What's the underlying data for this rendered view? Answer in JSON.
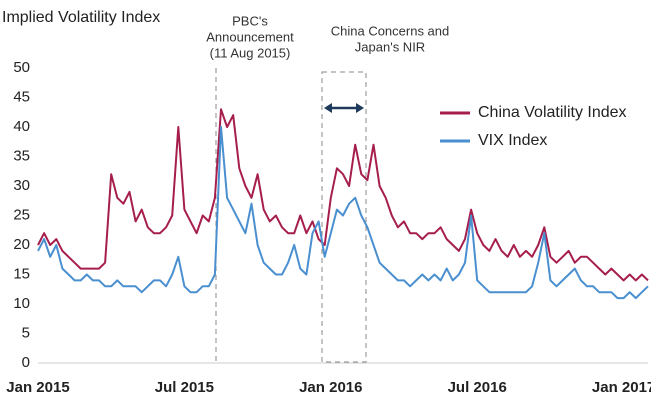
{
  "chart_data": {
    "type": "line",
    "title": "Implied Volatility Index",
    "annotations": [
      [
        "PBC's",
        "Announcement",
        "(11 Aug 2015)"
      ],
      [
        "China Concerns and",
        "Japan's NIR"
      ]
    ],
    "categories": [
      "Jan 2015",
      null,
      null,
      null,
      null,
      null,
      null,
      null,
      null,
      null,
      null,
      null,
      null,
      null,
      null,
      null,
      null,
      null,
      null,
      null,
      null,
      null,
      null,
      null,
      "Jul 2015",
      null,
      null,
      null,
      null,
      null,
      null,
      null,
      null,
      null,
      null,
      null,
      null,
      null,
      null,
      null,
      null,
      null,
      null,
      null,
      null,
      null,
      null,
      null,
      "Jan 2016",
      null,
      null,
      null,
      null,
      null,
      null,
      null,
      null,
      null,
      null,
      null,
      null,
      null,
      null,
      null,
      null,
      null,
      null,
      null,
      null,
      null,
      null,
      null,
      "Jul 2016",
      null,
      null,
      null,
      null,
      null,
      null,
      null,
      null,
      null,
      null,
      null,
      null,
      null,
      null,
      null,
      null,
      null,
      null,
      null,
      null,
      null,
      null,
      null,
      "Jan 2017",
      null,
      null,
      null,
      null
    ],
    "series": [
      {
        "name": "China Volatility Index",
        "color": "#a61e4d",
        "values": [
          20,
          22,
          20,
          21,
          19,
          18,
          17,
          16,
          16,
          16,
          16,
          17,
          32,
          28,
          27,
          29,
          24,
          26,
          23,
          22,
          22,
          23,
          25,
          40,
          26,
          24,
          22,
          25,
          24,
          28,
          43,
          40,
          42,
          33,
          30,
          28,
          32,
          26,
          24,
          25,
          23,
          22,
          22,
          25,
          22,
          24,
          21,
          20,
          28,
          33,
          32,
          30,
          37,
          32,
          31,
          37,
          30,
          28,
          25,
          23,
          24,
          22,
          22,
          21,
          22,
          22,
          23,
          21,
          20,
          19,
          21,
          26,
          22,
          20,
          19,
          21,
          19,
          18,
          20,
          18,
          19,
          18,
          20,
          23,
          18,
          17,
          18,
          19,
          17,
          18,
          18,
          17,
          16,
          15,
          16,
          15,
          14,
          15,
          14,
          15,
          14
        ]
      },
      {
        "name": "VIX Index",
        "color": "#4a8fd0",
        "values": [
          19,
          21,
          18,
          20,
          16,
          15,
          14,
          14,
          15,
          14,
          14,
          13,
          13,
          14,
          13,
          13,
          13,
          12,
          13,
          14,
          14,
          13,
          15,
          18,
          13,
          12,
          12,
          13,
          13,
          15,
          40,
          28,
          26,
          24,
          22,
          27,
          20,
          17,
          16,
          15,
          15,
          17,
          20,
          16,
          15,
          22,
          24,
          18,
          22,
          26,
          25,
          27,
          28,
          25,
          23,
          20,
          17,
          16,
          15,
          14,
          14,
          13,
          14,
          15,
          14,
          15,
          14,
          16,
          14,
          15,
          17,
          25,
          14,
          13,
          12,
          12,
          12,
          12,
          12,
          12,
          12,
          13,
          17,
          22,
          14,
          13,
          14,
          15,
          16,
          14,
          13,
          13,
          12,
          12,
          12,
          11,
          11,
          12,
          11,
          12,
          13
        ]
      }
    ],
    "ylim": [
      0,
      50
    ],
    "yticks": [
      0,
      5,
      10,
      15,
      20,
      25,
      30,
      35,
      40,
      45,
      50
    ],
    "grid": false
  }
}
